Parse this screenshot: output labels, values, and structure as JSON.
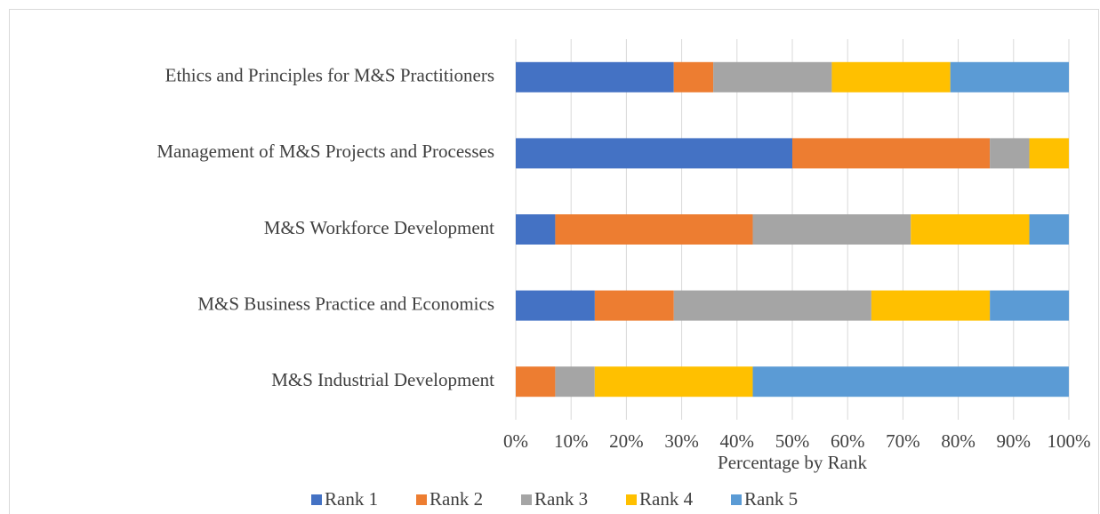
{
  "chart_data": {
    "type": "stacked_bar_horizontal",
    "categories": [
      "Ethics and Principles for M&S Practitioners",
      "Management of M&S Projects and Processes",
      "M&S Workforce Development",
      "M&S Business Practice and Economics",
      "M&S Industrial Development"
    ],
    "series": [
      {
        "name": "Rank 1",
        "color": "#4472c4",
        "values": [
          28.57,
          50,
          7.14,
          14.29,
          0
        ]
      },
      {
        "name": "Rank 2",
        "color": "#ed7d31",
        "values": [
          7.14,
          35.71,
          35.71,
          14.29,
          7.14
        ]
      },
      {
        "name": "Rank 3",
        "color": "#a5a5a5",
        "values": [
          21.43,
          7.14,
          28.57,
          35.71,
          7.14
        ]
      },
      {
        "name": "Rank 4",
        "color": "#ffc000",
        "values": [
          21.43,
          7.14,
          21.43,
          21.43,
          28.57
        ]
      },
      {
        "name": "Rank 5",
        "color": "#5b9bd5",
        "values": [
          21.43,
          0,
          7.14,
          14.29,
          57.14
        ]
      }
    ],
    "xlabel": "Percentage by Rank",
    "xlim": [
      0,
      100
    ],
    "xticks": [
      {
        "value": 0,
        "label": "0%"
      },
      {
        "value": 10,
        "label": "10%"
      },
      {
        "value": 20,
        "label": "20%"
      },
      {
        "value": 30,
        "label": "30%"
      },
      {
        "value": 40,
        "label": "40%"
      },
      {
        "value": 50,
        "label": "50%"
      },
      {
        "value": 60,
        "label": "60%"
      },
      {
        "value": 70,
        "label": "70%"
      },
      {
        "value": 80,
        "label": "80%"
      },
      {
        "value": 90,
        "label": "90%"
      },
      {
        "value": 100,
        "label": "100%"
      }
    ],
    "grid": true,
    "legend": "bottom"
  }
}
